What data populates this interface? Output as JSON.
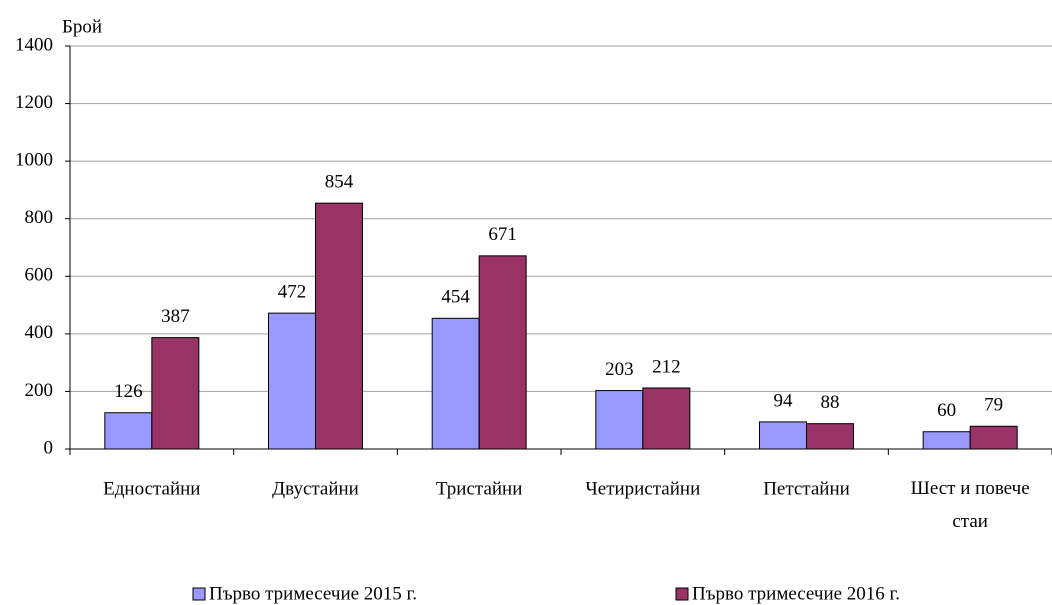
{
  "chart_data": {
    "type": "bar",
    "y_label": "Брой",
    "categories": [
      "Едностайни",
      "Двустайни",
      "Тристайни",
      "Четиристайни",
      "Петстайни",
      "Шест и повече стаи"
    ],
    "series": [
      {
        "name": "Първо тримесечие 2015 г.",
        "color": "#9999ff",
        "values": [
          126,
          472,
          454,
          203,
          94,
          60
        ]
      },
      {
        "name": "Първо тримесечие 2016 г.",
        "color": "#993366",
        "values": [
          387,
          854,
          671,
          212,
          88,
          79
        ]
      }
    ],
    "ylim": [
      0,
      1400
    ],
    "yticks": [
      0,
      200,
      400,
      600,
      800,
      1000,
      1200,
      1400
    ],
    "grid": true
  }
}
